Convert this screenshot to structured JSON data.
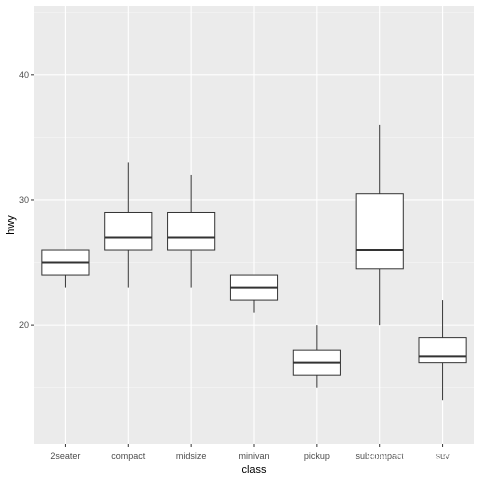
{
  "chart_data": {
    "type": "boxplot",
    "xlabel": "class",
    "ylabel": "hwy",
    "ylim": [
      10.5,
      45.5
    ],
    "y_ticks": [
      20,
      30,
      40
    ],
    "y_tick_labels": [
      "20",
      "30",
      "40"
    ],
    "grid": true,
    "categories": [
      "2seater",
      "compact",
      "midsize",
      "minivan",
      "pickup",
      "subcompact",
      "suv"
    ],
    "boxes": [
      {
        "category": "2seater",
        "min": 23,
        "q1": 24,
        "median": 25,
        "q3": 26,
        "max": 26
      },
      {
        "category": "compact",
        "min": 23,
        "q1": 26,
        "median": 27,
        "q3": 29,
        "max": 33
      },
      {
        "category": "midsize",
        "min": 23,
        "q1": 26,
        "median": 27,
        "q3": 29,
        "max": 32
      },
      {
        "category": "minivan",
        "min": 21,
        "q1": 22,
        "median": 23,
        "q3": 24,
        "max": 24
      },
      {
        "category": "pickup",
        "min": 15,
        "q1": 16,
        "median": 17,
        "q3": 18,
        "max": 20
      },
      {
        "category": "subcompact",
        "min": 20,
        "q1": 24.5,
        "median": 26,
        "q3": 30.5,
        "max": 36
      },
      {
        "category": "suv",
        "min": 14,
        "q1": 17,
        "median": 17.5,
        "q3": 19,
        "max": 22
      }
    ],
    "colors": {
      "panel_background": "#ebebeb",
      "grid_major": "#ffffff",
      "box_fill": "#ffffff",
      "box_stroke": "#333333"
    }
  },
  "watermark": {
    "text": "知乎 @王若容岁"
  }
}
